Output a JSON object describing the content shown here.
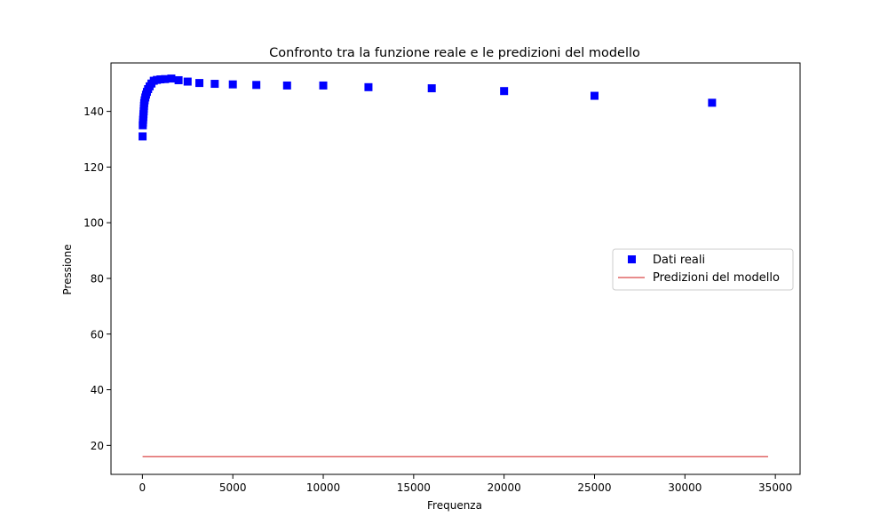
{
  "chart_data": {
    "type": "scatter",
    "title": "Confronto tra la funzione reale e le predizioni del modello",
    "xlabel": "Frequenza",
    "ylabel": "Pressione",
    "xlim": [
      -1737,
      36368
    ],
    "ylim": [
      9.6,
      157.4
    ],
    "xticks": [
      0,
      5000,
      10000,
      15000,
      20000,
      25000,
      30000,
      35000
    ],
    "yticks": [
      20,
      40,
      60,
      80,
      100,
      120,
      140
    ],
    "grid": false,
    "legend_position": "center-right",
    "series": [
      {
        "name": "Dati reali",
        "kind": "scatter",
        "marker": "square",
        "color": "#0000ff",
        "x": [
          10,
          20,
          30,
          40,
          50,
          60,
          70,
          80,
          90,
          100,
          125,
          160,
          200,
          250,
          315,
          400,
          500,
          630,
          800,
          1000,
          1250,
          1600,
          2000,
          2500,
          3150,
          4000,
          5000,
          6300,
          8000,
          10000,
          12500,
          16000,
          20000,
          25000,
          31500
        ],
        "y": [
          131,
          135,
          136,
          137,
          138,
          139,
          140,
          141,
          142,
          143,
          144,
          145,
          146,
          147,
          148,
          149,
          150,
          151,
          151.3,
          151.5,
          151.6,
          151.8,
          151.2,
          150.7,
          150.2,
          149.9,
          149.7,
          149.5,
          149.3,
          149.3,
          148.7,
          148.3,
          147.3,
          145.6,
          143.1
        ]
      },
      {
        "name": "Predizioni del modello",
        "kind": "line",
        "color": "#e06666",
        "x": [
          10,
          34600
        ],
        "y": [
          16,
          16
        ]
      }
    ]
  }
}
